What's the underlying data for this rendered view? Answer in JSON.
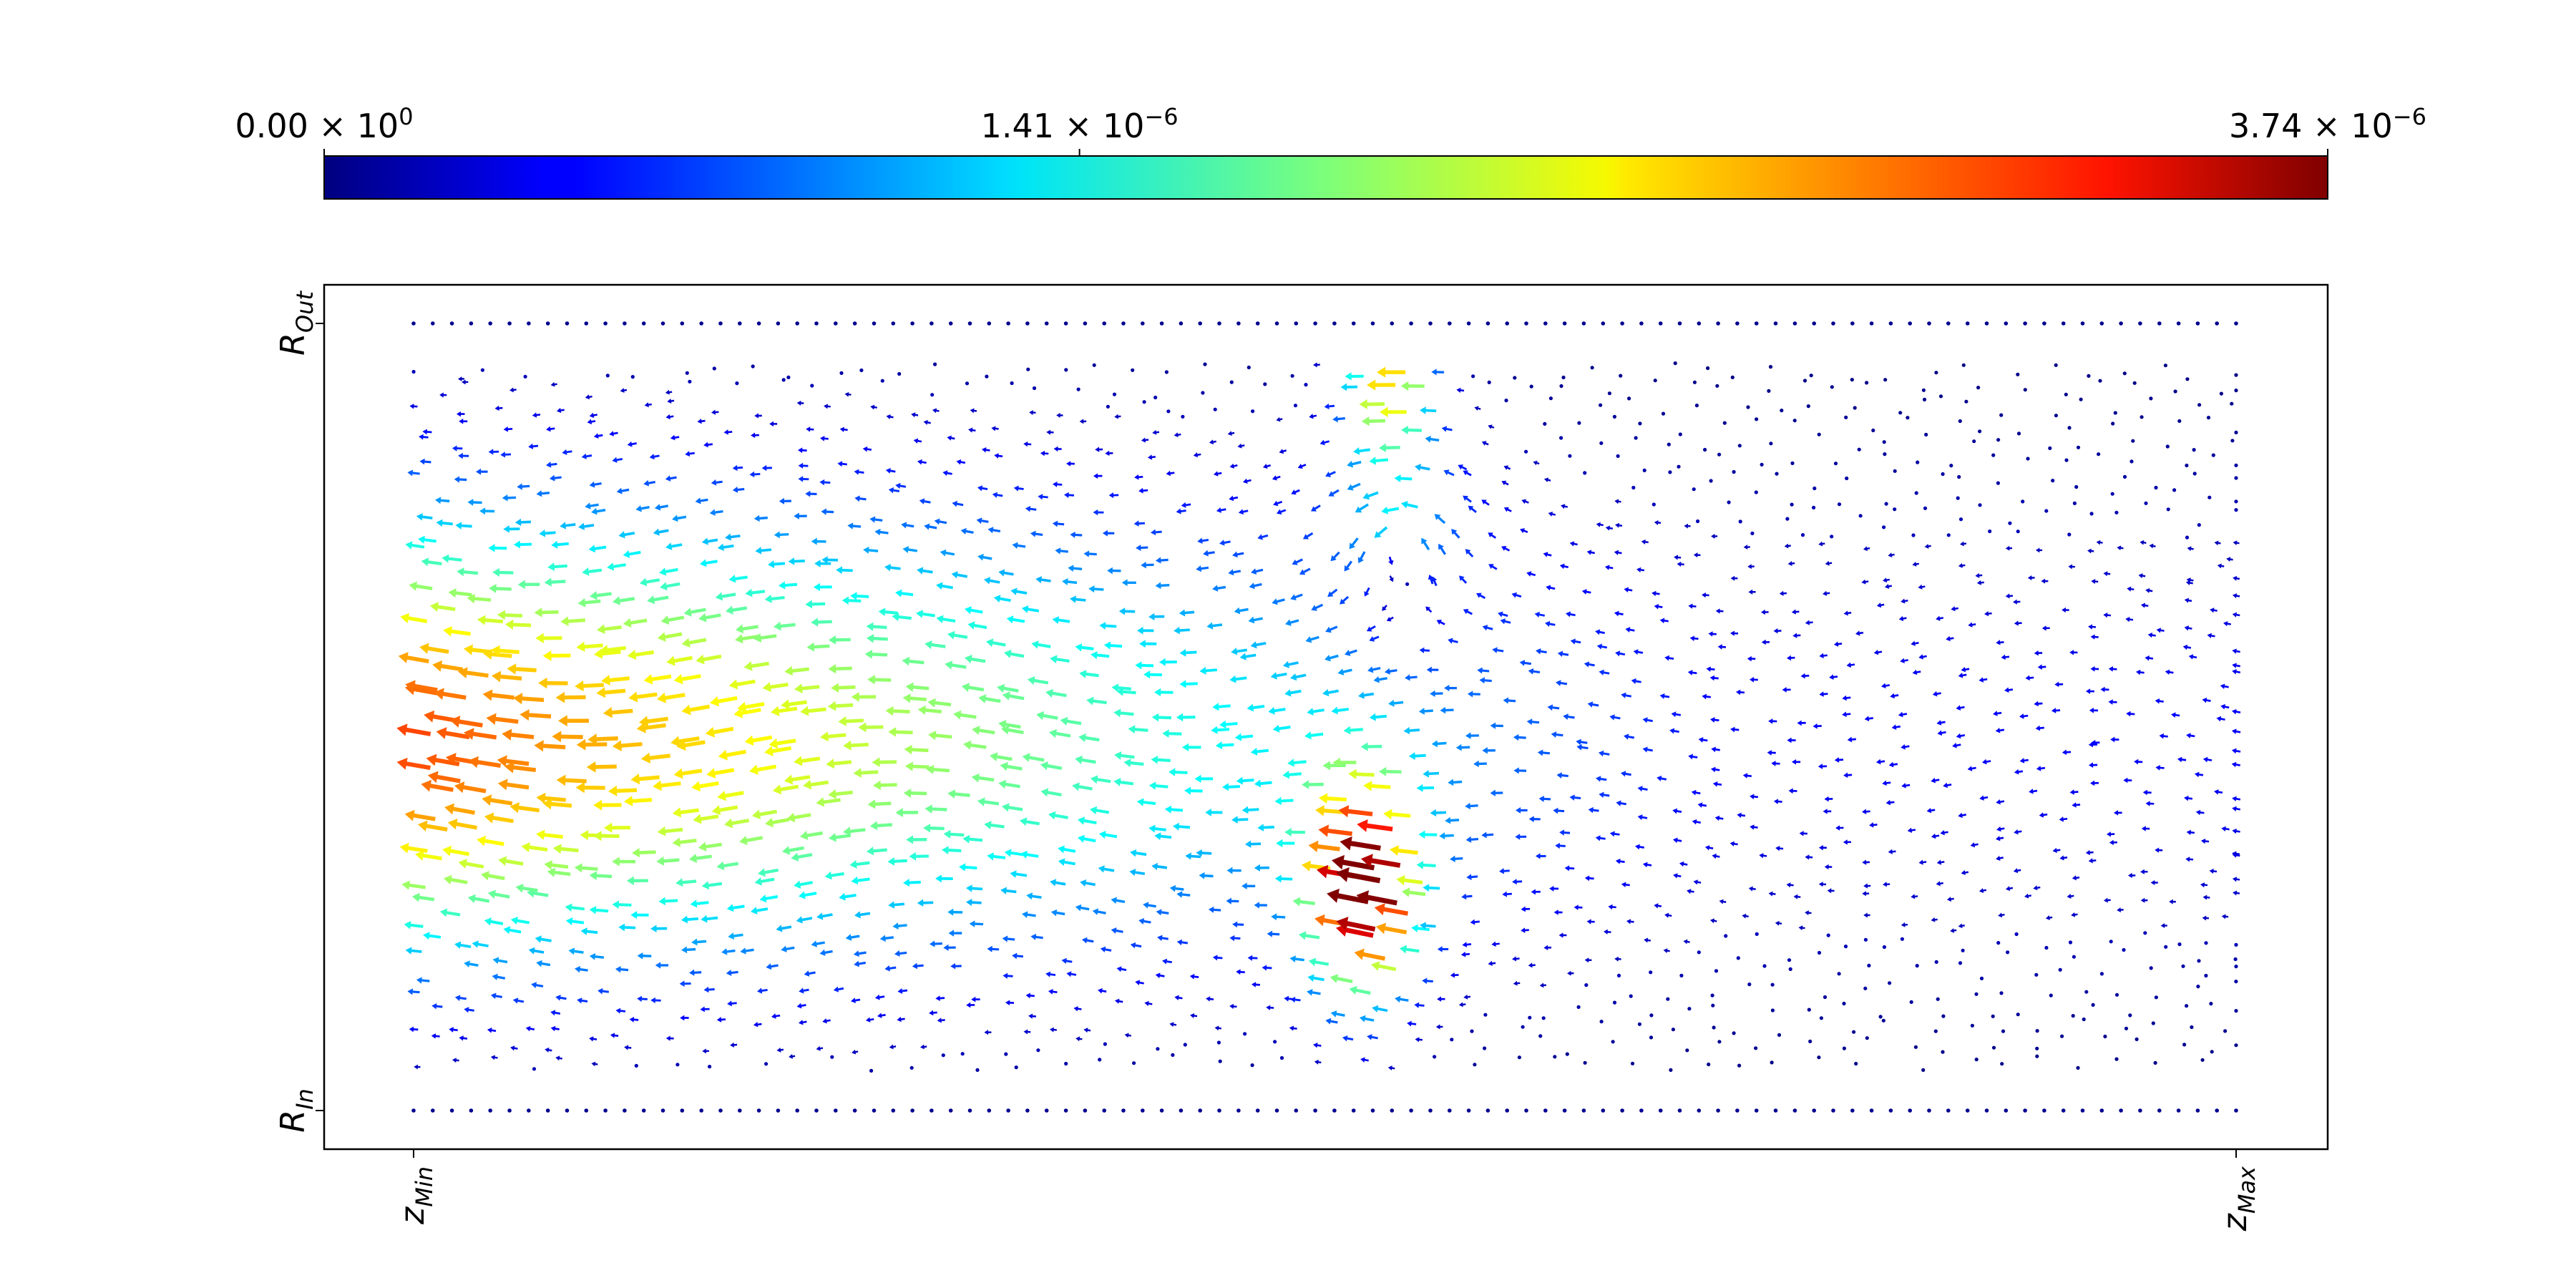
{
  "chart_data": {
    "type": "quiver",
    "title": "",
    "colormap": "jet",
    "colorbar": {
      "orientation": "horizontal",
      "placement": "top",
      "min": 0.0,
      "max": 3.74e-06,
      "ticks": [
        {
          "value": 0.0,
          "mantissa": "0.00",
          "times": " × 10",
          "exponent": "0"
        },
        {
          "value": 1.41e-06,
          "mantissa": "1.41",
          "times": " × 10",
          "exponent": "−6"
        },
        {
          "value": 3.74e-06,
          "mantissa": "3.74",
          "times": " × 10",
          "exponent": "−6"
        }
      ]
    },
    "x_axis": {
      "label": "",
      "range": [
        "zMin",
        "zMax"
      ],
      "ticks": [
        {
          "base": "z",
          "sub": "Min"
        },
        {
          "base": "z",
          "sub": "Max"
        }
      ]
    },
    "y_axis": {
      "label": "",
      "range": [
        "RIn",
        "ROut"
      ],
      "ticks": [
        {
          "base": "R",
          "sub": "In"
        },
        {
          "base": "R",
          "sub": "Out"
        }
      ]
    },
    "grid": false,
    "legend": "none",
    "field": {
      "grid_columns": 49,
      "grid_rows": 20,
      "wall_points_per_row": 96,
      "uniform_flow_max": 3e-06,
      "vortex_strength": 3.74e-06,
      "vortex_center": [
        0.54,
        0.72
      ],
      "jet_strength": 3.6e-06,
      "jet_center": [
        0.52,
        0.28
      ]
    }
  }
}
